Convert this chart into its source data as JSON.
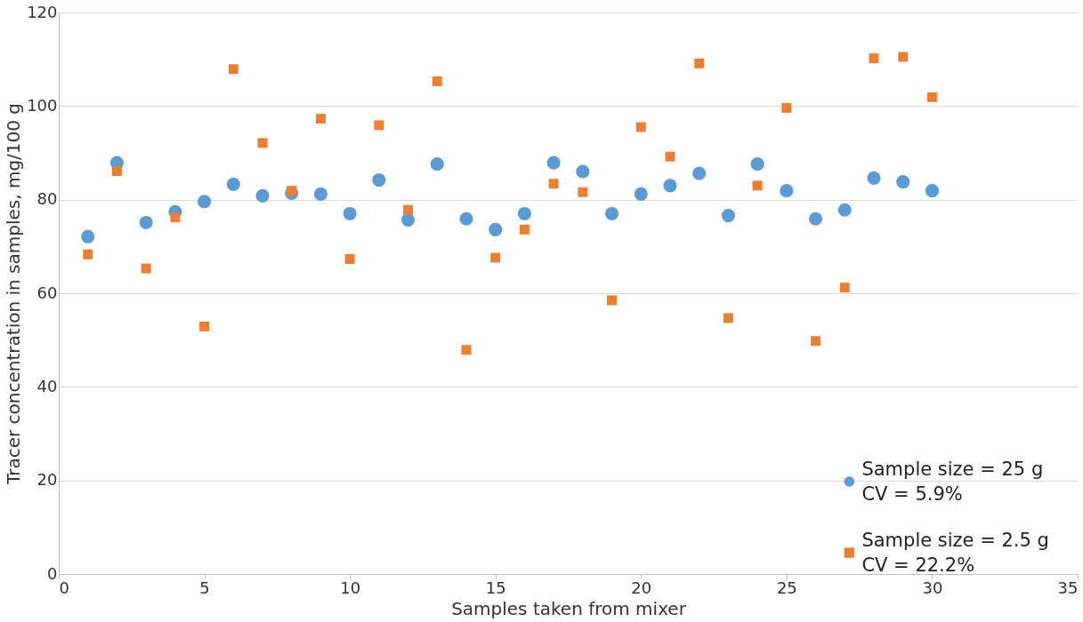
{
  "chart_data": {
    "type": "scatter",
    "xlabel": "Samples taken from mixer",
    "ylabel": "Tracer concentration in samples, mg/100 g",
    "x": [
      1,
      2,
      3,
      4,
      5,
      6,
      7,
      8,
      9,
      10,
      11,
      12,
      13,
      14,
      15,
      16,
      17,
      18,
      19,
      20,
      21,
      22,
      23,
      24,
      25,
      26,
      27,
      28,
      29,
      30
    ],
    "series": [
      {
        "name": "Sample size = 25 g\nCV = 5.9%",
        "color": "#5b9bd5",
        "marker": "circle",
        "values": [
          72.1,
          87.9,
          75.1,
          77.4,
          79.6,
          83.3,
          80.8,
          81.4,
          81.2,
          77.0,
          84.2,
          75.7,
          87.6,
          75.9,
          73.6,
          77.0,
          87.9,
          86.0,
          77.0,
          81.2,
          83.0,
          85.6,
          76.6,
          87.6,
          81.9,
          75.9,
          77.8,
          84.6,
          83.8,
          81.9
        ]
      },
      {
        "name": "Sample size = 2.5 g\nCV = 22.2%",
        "color": "#ed7d31",
        "marker": "square",
        "values": [
          68.3,
          86.1,
          65.3,
          76.2,
          52.9,
          107.9,
          92.1,
          81.9,
          97.3,
          67.3,
          95.9,
          77.8,
          105.3,
          47.9,
          67.6,
          73.6,
          83.4,
          81.6,
          58.5,
          95.5,
          89.2,
          109.1,
          54.7,
          83.0,
          99.6,
          49.8,
          61.2,
          110.2,
          110.5,
          101.9
        ]
      }
    ],
    "xlim": [
      0,
      35
    ],
    "xticks": [
      0,
      5,
      10,
      15,
      20,
      25,
      30,
      35
    ],
    "ylim": [
      0,
      120
    ],
    "yticks": [
      0,
      20,
      40,
      60,
      80,
      100,
      120
    ],
    "grid": "y",
    "legend": "bottom right"
  }
}
